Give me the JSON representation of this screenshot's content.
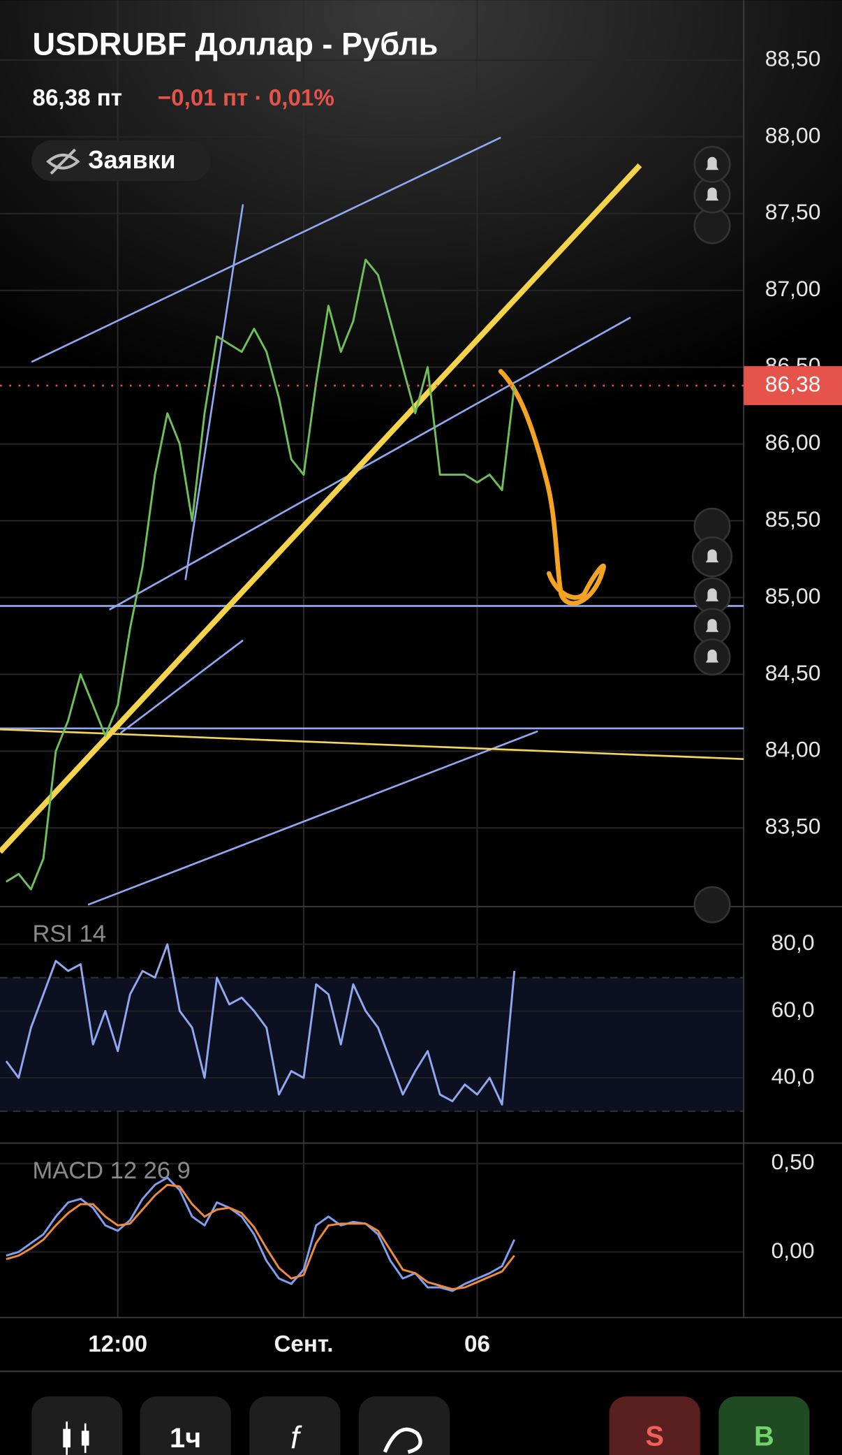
{
  "header": {
    "title": "USDRUBF Доллар - Рубль",
    "price": "86,38 пт",
    "change": "−0,01 пт · 0,01%",
    "orders_chip": "Заявки"
  },
  "chart_data": [
    {
      "type": "line",
      "color": "#6fbf5a",
      "values": [
        83.15,
        83.2,
        83.1,
        83.3,
        84.0,
        84.2,
        84.5,
        84.3,
        84.1,
        84.3,
        84.8,
        85.2,
        85.8,
        86.2,
        86.0,
        85.5,
        86.2,
        86.7,
        86.65,
        86.6,
        86.75,
        86.6,
        86.3,
        85.9,
        85.8,
        86.4,
        86.9,
        86.6,
        86.8,
        87.2,
        87.1,
        86.8,
        86.5,
        86.2,
        86.5,
        85.8,
        85.8,
        85.8,
        85.75,
        85.8,
        85.7,
        86.38,
        null,
        null,
        null,
        null,
        null,
        null,
        null,
        null,
        null,
        null,
        null,
        null,
        null,
        null,
        null,
        null,
        null,
        null
      ],
      "ylim": [
        83.0,
        88.89
      ],
      "yticks": [
        {
          "value": 83.5,
          "label": "83,50"
        },
        {
          "value": 84.0,
          "label": "84,00"
        },
        {
          "value": 84.5,
          "label": "84,50"
        },
        {
          "value": 85.0,
          "label": "85,00"
        },
        {
          "value": 85.5,
          "label": "85,50"
        },
        {
          "value": 86.0,
          "label": "86,00"
        },
        {
          "value": 86.5,
          "label": "86,50"
        },
        {
          "value": 87.0,
          "label": "87,00"
        },
        {
          "value": 87.5,
          "label": "87,50"
        },
        {
          "value": 88.0,
          "label": "88,00"
        },
        {
          "value": 88.5,
          "label": "88,50"
        }
      ],
      "last": {
        "value": 86.38,
        "label": "86,38"
      },
      "grid": true
    },
    {
      "type": "line",
      "title": "RSI 14",
      "color": "#8fa8f0",
      "values": [
        45,
        40,
        55,
        65,
        75,
        72,
        74,
        50,
        60,
        48,
        65,
        72,
        70,
        80,
        60,
        55,
        40,
        70,
        62,
        64,
        60,
        55,
        35,
        42,
        40,
        68,
        65,
        50,
        68,
        60,
        55,
        45,
        35,
        42,
        48,
        35,
        33,
        38,
        35,
        40,
        32,
        72,
        null,
        null,
        null,
        null,
        null,
        null,
        null,
        null,
        null,
        null,
        null,
        null,
        null,
        null,
        null,
        null,
        null,
        null
      ],
      "ylim": [
        21,
        91
      ],
      "yticks": [
        {
          "value": 40,
          "label": "40,0"
        },
        {
          "value": 60,
          "label": "60,0"
        },
        {
          "value": 80,
          "label": "80,0"
        }
      ],
      "band": [
        30,
        70
      ]
    },
    {
      "type": "line",
      "title": "MACD 12 26 9",
      "categories": [
        null,
        null,
        null,
        null,
        null,
        null,
        null,
        null,
        null,
        "12:00",
        null,
        null,
        null,
        null,
        null,
        null,
        null,
        null,
        null,
        null,
        null,
        null,
        null,
        null,
        "Сент.",
        null,
        null,
        null,
        null,
        null,
        null,
        null,
        null,
        null,
        null,
        null,
        null,
        null,
        "06",
        null,
        null,
        null,
        null,
        null,
        null,
        null,
        null,
        null,
        null,
        null,
        null,
        null,
        null,
        null,
        null,
        null,
        null,
        null,
        null,
        null
      ],
      "series": [
        {
          "color": "#7f9ff0",
          "values": [
            -0.02,
            0.0,
            0.05,
            0.1,
            0.2,
            0.28,
            0.3,
            0.25,
            0.15,
            0.12,
            0.18,
            0.3,
            0.38,
            0.42,
            0.35,
            0.2,
            0.15,
            0.28,
            0.25,
            0.2,
            0.1,
            -0.05,
            -0.15,
            -0.18,
            -0.1,
            0.15,
            0.2,
            0.15,
            0.17,
            0.16,
            0.1,
            -0.05,
            -0.15,
            -0.12,
            -0.2,
            -0.2,
            -0.22,
            -0.18,
            -0.15,
            -0.12,
            -0.08,
            0.07,
            null,
            null,
            null,
            null,
            null,
            null,
            null,
            null,
            null,
            null,
            null,
            null,
            null,
            null,
            null,
            null,
            null,
            null
          ]
        },
        {
          "color": "#f08a3c",
          "values": [
            -0.04,
            -0.02,
            0.02,
            0.07,
            0.15,
            0.22,
            0.27,
            0.27,
            0.2,
            0.15,
            0.16,
            0.24,
            0.32,
            0.38,
            0.37,
            0.27,
            0.2,
            0.24,
            0.25,
            0.22,
            0.14,
            0.02,
            -0.09,
            -0.15,
            -0.13,
            0.05,
            0.15,
            0.16,
            0.16,
            0.16,
            0.12,
            0.01,
            -0.1,
            -0.12,
            -0.17,
            -0.19,
            -0.21,
            -0.2,
            -0.17,
            -0.14,
            -0.11,
            -0.02,
            null,
            null,
            null,
            null,
            null,
            null,
            null,
            null,
            null,
            null,
            null,
            null,
            null,
            null,
            null,
            null,
            null,
            null
          ]
        }
      ],
      "ylim": [
        -0.36,
        0.61
      ],
      "yticks": [
        {
          "value": 0,
          "label": "0,00"
        },
        {
          "value": 0.5,
          "label": "0,50"
        }
      ]
    }
  ],
  "toolbar": {
    "interval": "1ч",
    "sell": "S",
    "buy": "B"
  }
}
